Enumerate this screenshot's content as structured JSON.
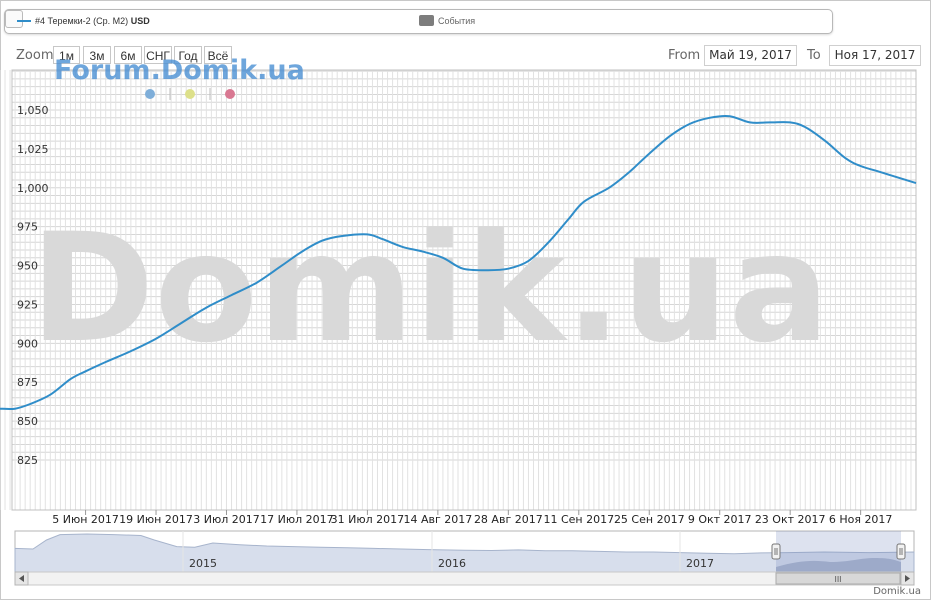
{
  "legend": {
    "series_label": "#4 Теремки-2 (Ср. М2)",
    "series_unit": "USD",
    "events_label": "События"
  },
  "zoom": {
    "label": "Zoom",
    "buttons": [
      "1м",
      "3м",
      "6м",
      "СНГ",
      "Год",
      "Всё"
    ]
  },
  "range": {
    "from_label": "From",
    "from_value": "Май 19, 2017",
    "to_label": "To",
    "to_value": "Ноя 17, 2017"
  },
  "watermark": {
    "small": "Forum.Domik.ua",
    "big": "Domik.ua"
  },
  "indicator_dot_colors": [
    "#7eaed9",
    "#dde08a",
    "#d97892"
  ],
  "navigator": {
    "years": [
      "2015",
      "2016",
      "2017"
    ],
    "scroll_grip": "III"
  },
  "credit": "Domik.ua",
  "colors": {
    "series": "#2f8dc9",
    "navigator_fill": "#d7deec",
    "navigator_line": "#a7b4cc",
    "navigator_selected": "#8e9cbf"
  },
  "chart_data": {
    "type": "line",
    "title": "",
    "xlabel": "",
    "ylabel": "",
    "ylim": [
      820,
      1075
    ],
    "yticks": [
      825,
      850,
      875,
      900,
      925,
      950,
      975,
      "1,000",
      "1,025",
      "1,050"
    ],
    "xticks": [
      "5 Июн 2017",
      "19 Июн 2017",
      "3 Июл 2017",
      "17 Июл 2017",
      "31 Июл 2017",
      "14 Авг 2017",
      "28 Авг 2017",
      "11 Сен 2017",
      "25 Сен 2017",
      "9 Окт 2017",
      "23 Окт 2017",
      "6 Ноя 2017"
    ],
    "grid": true,
    "series": [
      {
        "name": "#4 Теремки-2 (Ср. М2) USD",
        "points": [
          [
            "2017-05-19",
            858
          ],
          [
            "2017-05-22",
            858
          ],
          [
            "2017-05-25",
            861
          ],
          [
            "2017-05-29",
            867
          ],
          [
            "2017-06-02",
            877
          ],
          [
            "2017-06-05",
            882
          ],
          [
            "2017-06-09",
            888
          ],
          [
            "2017-06-14",
            895
          ],
          [
            "2017-06-19",
            903
          ],
          [
            "2017-06-24",
            913
          ],
          [
            "2017-06-29",
            923
          ],
          [
            "2017-07-04",
            931
          ],
          [
            "2017-07-09",
            939
          ],
          [
            "2017-07-14",
            950
          ],
          [
            "2017-07-18",
            959
          ],
          [
            "2017-07-22",
            966
          ],
          [
            "2017-07-26",
            969
          ],
          [
            "2017-07-31",
            970
          ],
          [
            "2017-08-03",
            967
          ],
          [
            "2017-08-07",
            962
          ],
          [
            "2017-08-11",
            959
          ],
          [
            "2017-08-15",
            955
          ],
          [
            "2017-08-19",
            948
          ],
          [
            "2017-08-24",
            947
          ],
          [
            "2017-08-28",
            948
          ],
          [
            "2017-09-01",
            953
          ],
          [
            "2017-09-05",
            965
          ],
          [
            "2017-09-09",
            980
          ],
          [
            "2017-09-12",
            991
          ],
          [
            "2017-09-17",
            1000
          ],
          [
            "2017-09-21",
            1010
          ],
          [
            "2017-09-25",
            1022
          ],
          [
            "2017-09-29",
            1033
          ],
          [
            "2017-10-03",
            1041
          ],
          [
            "2017-10-07",
            1045
          ],
          [
            "2017-10-11",
            1046
          ],
          [
            "2017-10-15",
            1042
          ],
          [
            "2017-10-19",
            1042
          ],
          [
            "2017-10-23",
            1042
          ],
          [
            "2017-10-26",
            1039
          ],
          [
            "2017-10-30",
            1030
          ],
          [
            "2017-11-03",
            1019
          ],
          [
            "2017-11-06",
            1014
          ],
          [
            "2017-11-10",
            1010
          ],
          [
            "2017-11-17",
            1003
          ]
        ]
      }
    ]
  }
}
